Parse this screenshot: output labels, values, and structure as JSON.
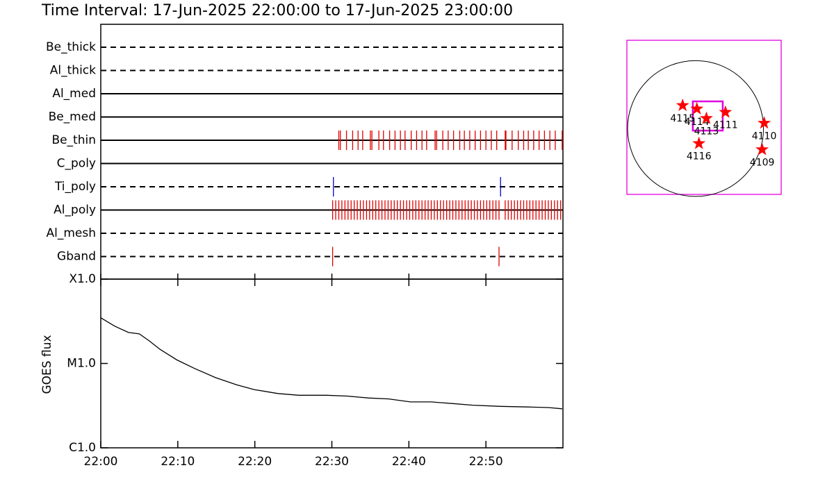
{
  "title": "Time Interval: 17-Jun-2025 22:00:00 to 17-Jun-2025 23:00:00",
  "chart_data": [
    {
      "type": "timeline",
      "xlim": [
        0,
        60
      ],
      "rows": [
        {
          "label": "Be_thick",
          "style": "dashed",
          "events": []
        },
        {
          "label": "Al_thick",
          "style": "dashed",
          "events": []
        },
        {
          "label": "Al_med",
          "style": "solid",
          "events": []
        },
        {
          "label": "Be_med",
          "style": "solid",
          "events": []
        },
        {
          "label": "Be_thin",
          "style": "solid",
          "color": "#e00000",
          "events": [
            30.9,
            31.1,
            31.9,
            32.7,
            33.4,
            34.0,
            35.0,
            35.2,
            36.1,
            36.7,
            37.5,
            38.2,
            38.9,
            39.5,
            40.3,
            41.0,
            41.7,
            42.3,
            43.4,
            43.6,
            44.4,
            45.1,
            45.8,
            46.6,
            47.2,
            47.9,
            48.6,
            49.3,
            50.0,
            50.7,
            51.4,
            52.5,
            52.6,
            53.4,
            54.2,
            54.9,
            55.5,
            56.2,
            56.9,
            57.6,
            58.3,
            59.0,
            59.9
          ]
        },
        {
          "label": "C_poly",
          "style": "solid",
          "events": []
        },
        {
          "label": "Ti_poly",
          "style": "dashed",
          "color": "#0000cc",
          "events": [
            30.2,
            51.9
          ]
        },
        {
          "label": "Al_poly",
          "style": "solid",
          "color": "#e00000",
          "events": [
            30.1,
            30.5,
            30.9,
            31.3,
            31.7,
            32.1,
            32.5,
            32.9,
            33.3,
            33.7,
            34.1,
            34.5,
            34.9,
            35.3,
            35.7,
            36.1,
            36.5,
            36.9,
            37.3,
            37.7,
            38.1,
            38.5,
            38.9,
            39.3,
            39.7,
            40.1,
            40.5,
            40.9,
            41.3,
            41.7,
            42.1,
            42.5,
            42.9,
            43.3,
            43.7,
            44.1,
            44.5,
            44.9,
            45.3,
            45.7,
            46.1,
            46.5,
            46.9,
            47.3,
            47.7,
            48.1,
            48.5,
            48.9,
            49.3,
            49.7,
            50.1,
            50.5,
            50.9,
            51.3,
            51.7,
            52.5,
            52.9,
            53.3,
            53.7,
            54.1,
            54.5,
            54.9,
            55.3,
            55.7,
            56.1,
            56.5,
            56.9,
            57.3,
            57.7,
            58.1,
            58.5,
            58.9,
            59.3,
            59.7
          ]
        },
        {
          "label": "Al_mesh",
          "style": "dashed",
          "events": []
        },
        {
          "label": "Gband",
          "style": "dashed",
          "color": "#e00000",
          "events": [
            30.1,
            51.7
          ]
        }
      ]
    },
    {
      "type": "line",
      "y_label": "GOES flux",
      "log_scale": true,
      "color": "#000000",
      "xlim": [
        0,
        60
      ],
      "xticks": [
        {
          "value": 0,
          "label": "22:00"
        },
        {
          "value": 10,
          "label": "22:10"
        },
        {
          "value": 20,
          "label": "22:20"
        },
        {
          "value": 30,
          "label": "22:30"
        },
        {
          "value": 40,
          "label": "22:40"
        },
        {
          "value": 50,
          "label": "22:50"
        }
      ],
      "ylim": [
        1e-06,
        0.0001
      ],
      "yticks": [
        {
          "value": 1e-06,
          "label": "C1.0"
        },
        {
          "value": 1e-05,
          "label": "M1.0"
        },
        {
          "value": 0.0001,
          "label": "X1.0"
        }
      ],
      "x": [
        0,
        1.8,
        3.6,
        5.0,
        6.3,
        7.7,
        9.9,
        12.2,
        14.9,
        17.6,
        19.9,
        23.0,
        25.7,
        29.3,
        32.0,
        34.7,
        37.4,
        40.2,
        42.9,
        45.6,
        48.3,
        51.9,
        55.5,
        58.1,
        59.9
      ],
      "values": [
        3.48e-05,
        2.77e-05,
        2.33e-05,
        2.24e-05,
        1.85e-05,
        1.47e-05,
        1.1e-05,
        8.7e-06,
        6.8e-06,
        5.6e-06,
        4.9e-06,
        4.4e-06,
        4.2e-06,
        4.2e-06,
        4.1e-06,
        3.9e-06,
        3.8e-06,
        3.5e-06,
        3.5e-06,
        3.35e-06,
        3.2e-06,
        3.1e-06,
        3.05e-06,
        3e-06,
        2.9e-06
      ]
    },
    {
      "type": "map",
      "xlim": [
        -1.01,
        1.26
      ],
      "ylim": [
        -0.97,
        1.3
      ],
      "frame_color": "#e000e0",
      "marker_color": "#ff0000",
      "fov": {
        "x": [
          -0.04,
          0.4
        ],
        "y": [
          -0.03,
          0.4
        ],
        "color": "#e000e0"
      },
      "points": [
        {
          "label": "4115",
          "x": -0.19,
          "y": 0.34
        },
        {
          "label": "4114",
          "x": 0.02,
          "y": 0.29
        },
        {
          "label": "4113",
          "x": 0.16,
          "y": 0.15
        },
        {
          "label": "4111",
          "x": 0.44,
          "y": 0.24
        },
        {
          "label": "4110",
          "x": 1.01,
          "y": 0.08
        },
        {
          "label": "4109",
          "x": 0.98,
          "y": -0.31
        },
        {
          "label": "4116",
          "x": 0.05,
          "y": -0.22
        }
      ]
    }
  ]
}
